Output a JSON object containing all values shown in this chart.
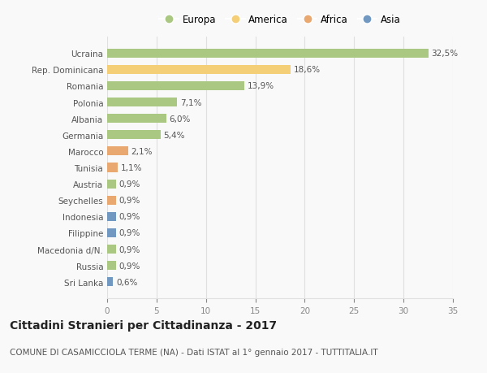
{
  "categories": [
    "Sri Lanka",
    "Russia",
    "Macedonia d/N.",
    "Filippine",
    "Indonesia",
    "Seychelles",
    "Austria",
    "Tunisia",
    "Marocco",
    "Germania",
    "Albania",
    "Polonia",
    "Romania",
    "Rep. Dominicana",
    "Ucraina"
  ],
  "values": [
    0.6,
    0.9,
    0.9,
    0.9,
    0.9,
    0.9,
    0.9,
    1.1,
    2.1,
    5.4,
    6.0,
    7.1,
    13.9,
    18.6,
    32.5
  ],
  "labels": [
    "0,6%",
    "0,9%",
    "0,9%",
    "0,9%",
    "0,9%",
    "0,9%",
    "0,9%",
    "1,1%",
    "2,1%",
    "5,4%",
    "6,0%",
    "7,1%",
    "13,9%",
    "18,6%",
    "32,5%"
  ],
  "colors": [
    "#7098c0",
    "#aac882",
    "#aac882",
    "#7098c0",
    "#7098c0",
    "#e8a870",
    "#aac882",
    "#e8a870",
    "#e8a870",
    "#aac882",
    "#aac882",
    "#aac882",
    "#aac882",
    "#f5ce78",
    "#aac882"
  ],
  "legend": {
    "Europa": "#aac882",
    "America": "#f5ce78",
    "Africa": "#e8a870",
    "Asia": "#7098c0"
  },
  "xlim": [
    0,
    35
  ],
  "xticks": [
    0,
    5,
    10,
    15,
    20,
    25,
    30,
    35
  ],
  "title": "Cittadini Stranieri per Cittadinanza - 2017",
  "subtitle": "COMUNE DI CASAMICCIOLA TERME (NA) - Dati ISTAT al 1° gennaio 2017 - TUTTITALIA.IT",
  "bg_color": "#f9f9f9",
  "grid_color": "#e0e0e0",
  "bar_height": 0.55,
  "title_fontsize": 10,
  "subtitle_fontsize": 7.5,
  "label_fontsize": 7.5,
  "tick_fontsize": 7.5,
  "legend_fontsize": 8.5
}
